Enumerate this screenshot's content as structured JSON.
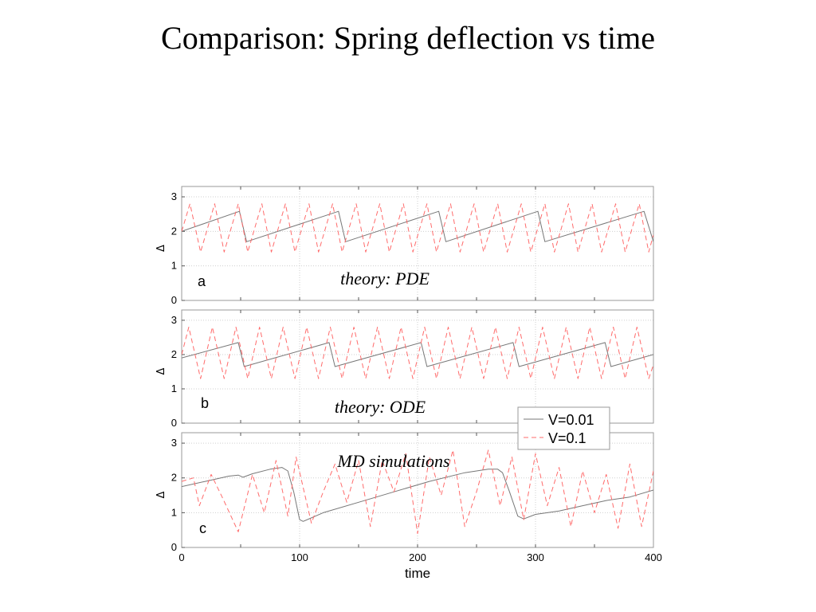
{
  "slide": {
    "title": "Comparison: Spring deflection vs time"
  },
  "chart_data": {
    "type": "line",
    "xlabel": "time",
    "xlim": [
      0,
      400
    ],
    "x_ticks": [
      "0",
      "100",
      "200",
      "300",
      "400"
    ],
    "legend": {
      "placement": "right, between panels b and c",
      "entries": [
        {
          "label": "V=0.01",
          "color": "#777777",
          "style": "solid"
        },
        {
          "label": "V=0.1",
          "color": "#ff6b6b",
          "style": "dashed"
        }
      ]
    },
    "panels": [
      {
        "letter": "a",
        "annotation": "theory: PDE",
        "ylabel": "Δ",
        "ylim": [
          0,
          3.3
        ],
        "y_ticks": [
          "0",
          "1",
          "2",
          "3"
        ],
        "grid": true,
        "series": [
          {
            "name": "V=0.01",
            "x": [
              0,
              49,
              55,
              133,
              139,
              218,
              224,
              302,
              308,
              392,
              400
            ],
            "y": [
              2.0,
              2.58,
              1.7,
              2.58,
              1.7,
              2.58,
              1.7,
              2.58,
              1.7,
              2.58,
              1.7
            ]
          },
          {
            "name": "V=0.1",
            "x": [
              0,
              7,
              16,
              28,
              36,
              48,
              56,
              68,
              76,
              88,
              96,
              108,
              116,
              128,
              136,
              148,
              156,
              168,
              176,
              188,
              196,
              208,
              216,
              228,
              236,
              248,
              256,
              268,
              276,
              288,
              296,
              308,
              316,
              328,
              336,
              348,
              356,
              368,
              376,
              388,
              396,
              400
            ],
            "y": [
              2.0,
              2.8,
              1.4,
              2.8,
              1.4,
              2.8,
              1.4,
              2.8,
              1.4,
              2.8,
              1.4,
              2.8,
              1.4,
              2.8,
              1.4,
              2.8,
              1.4,
              2.8,
              1.4,
              2.8,
              1.4,
              2.8,
              1.4,
              2.8,
              1.4,
              2.8,
              1.4,
              2.8,
              1.4,
              2.8,
              1.4,
              2.8,
              1.4,
              2.8,
              1.4,
              2.8,
              1.4,
              2.8,
              1.4,
              2.8,
              1.4,
              1.9
            ]
          }
        ]
      },
      {
        "letter": "b",
        "annotation": "theory: ODE",
        "ylabel": "Δ",
        "ylim": [
          0,
          3.3
        ],
        "y_ticks": [
          "0",
          "1",
          "2",
          "3"
        ],
        "grid": true,
        "series": [
          {
            "name": "V=0.01",
            "x": [
              0,
              48,
              53,
              125,
              130,
              203,
              208,
              281,
              286,
              359,
              364,
              400
            ],
            "y": [
              1.9,
              2.35,
              1.65,
              2.35,
              1.65,
              2.35,
              1.65,
              2.35,
              1.65,
              2.35,
              1.65,
              2.0
            ]
          },
          {
            "name": "V=0.1",
            "x": [
              0,
              6,
              16,
              26,
              36,
              46,
              56,
              66,
              76,
              86,
              96,
              106,
              116,
              126,
              136,
              146,
              156,
              166,
              176,
              186,
              196,
              206,
              216,
              226,
              236,
              246,
              256,
              266,
              276,
              286,
              296,
              306,
              316,
              326,
              336,
              346,
              356,
              366,
              376,
              386,
              396,
              400
            ],
            "y": [
              2.0,
              2.8,
              1.3,
              2.8,
              1.3,
              2.8,
              1.3,
              2.8,
              1.3,
              2.8,
              1.3,
              2.8,
              1.3,
              2.8,
              1.3,
              2.8,
              1.3,
              2.8,
              1.3,
              2.8,
              1.3,
              2.8,
              1.3,
              2.8,
              1.3,
              2.8,
              1.3,
              2.8,
              1.3,
              2.8,
              1.3,
              2.8,
              1.3,
              2.8,
              1.3,
              2.8,
              1.3,
              2.8,
              1.3,
              2.8,
              1.3,
              1.7
            ]
          }
        ]
      },
      {
        "letter": "c",
        "annotation": "MD simulations",
        "ylabel": "Δ",
        "ylim": [
          0,
          3.3
        ],
        "y_ticks": [
          "0",
          "1",
          "2",
          "3"
        ],
        "grid": true,
        "series": [
          {
            "name": "V=0.01",
            "x": [
              0,
              20,
              40,
              48,
              52,
              60,
              75,
              85,
              90,
              95,
              100,
              103,
              120,
              150,
              180,
              210,
              240,
              260,
              268,
              272,
              278,
              285,
              290,
              300,
              310,
              320,
              340,
              360,
              380,
              400
            ],
            "y": [
              1.75,
              1.9,
              2.05,
              2.08,
              2.02,
              2.12,
              2.25,
              2.3,
              2.2,
              1.6,
              0.8,
              0.75,
              1.0,
              1.3,
              1.6,
              1.9,
              2.15,
              2.25,
              2.25,
              2.15,
              1.6,
              0.9,
              0.82,
              0.95,
              1.0,
              1.05,
              1.2,
              1.35,
              1.45,
              1.65
            ]
          },
          {
            "name": "V=0.1",
            "x": [
              0,
              10,
              15,
              25,
              35,
              48,
              60,
              70,
              80,
              90,
              97,
              110,
              120,
              130,
              140,
              150,
              160,
              170,
              180,
              190,
              200,
              210,
              220,
              230,
              240,
              250,
              260,
              270,
              280,
              290,
              300,
              310,
              320,
              330,
              340,
              350,
              360,
              370,
              380,
              390,
              400
            ],
            "y": [
              1.9,
              2.0,
              1.2,
              2.1,
              1.4,
              0.45,
              2.1,
              1.0,
              2.5,
              0.9,
              2.6,
              0.7,
              1.6,
              2.4,
              1.3,
              2.5,
              0.6,
              2.5,
              1.6,
              2.7,
              0.4,
              2.6,
              1.5,
              2.8,
              0.6,
              1.6,
              2.8,
              1.2,
              2.6,
              0.8,
              2.7,
              1.2,
              2.3,
              0.6,
              2.2,
              1.0,
              2.1,
              0.55,
              2.4,
              0.6,
              2.2
            ]
          }
        ]
      }
    ]
  }
}
